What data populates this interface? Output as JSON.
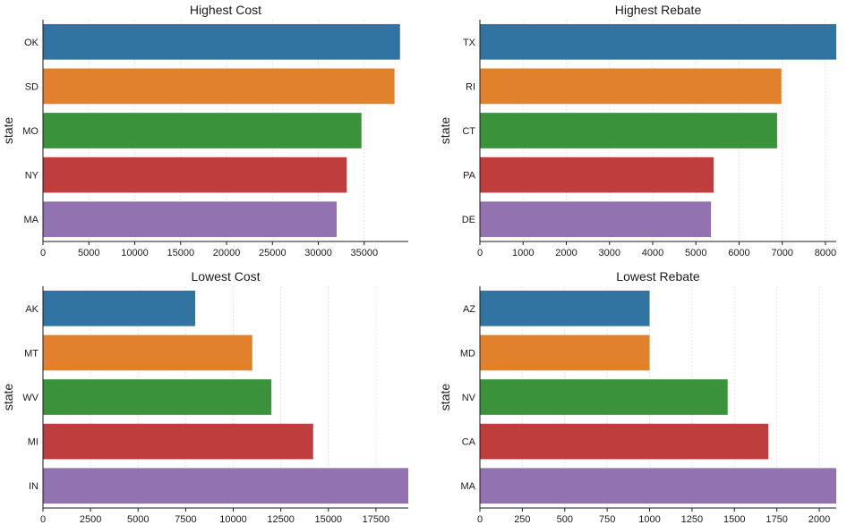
{
  "chart_data": [
    {
      "type": "bar",
      "orientation": "horizontal",
      "title": "Highest Cost",
      "ylabel": "state",
      "xlabel": "",
      "categories": [
        "OK",
        "SD",
        "MO",
        "NY",
        "MA"
      ],
      "values": [
        38900,
        38300,
        34700,
        33100,
        32000
      ],
      "xlim": [
        0,
        39800
      ],
      "xticks": [
        "0",
        "5000",
        "10000",
        "15000",
        "20000",
        "25000",
        "30000",
        "35000"
      ],
      "xtick_values": [
        0,
        5000,
        10000,
        15000,
        20000,
        25000,
        30000,
        35000
      ],
      "colors": [
        "#3274a1",
        "#e1812c",
        "#3a923a",
        "#c03d3e",
        "#9372b2"
      ],
      "grid": "vertical"
    },
    {
      "type": "bar",
      "orientation": "horizontal",
      "title": "Highest Rebate",
      "ylabel": "state",
      "xlabel": "",
      "categories": [
        "TX",
        "RI",
        "CT",
        "PA",
        "DE"
      ],
      "values": [
        8250,
        6980,
        6880,
        5410,
        5350
      ],
      "xlim": [
        0,
        8250
      ],
      "xticks": [
        "0",
        "1000",
        "2000",
        "3000",
        "4000",
        "5000",
        "6000",
        "7000",
        "8000"
      ],
      "xtick_values": [
        0,
        1000,
        2000,
        3000,
        4000,
        5000,
        6000,
        7000,
        8000
      ],
      "colors": [
        "#3274a1",
        "#e1812c",
        "#3a923a",
        "#c03d3e",
        "#9372b2"
      ],
      "grid": "vertical"
    },
    {
      "type": "bar",
      "orientation": "horizontal",
      "title": "Lowest Cost",
      "ylabel": "state",
      "xlabel": "",
      "categories": [
        "AK",
        "MT",
        "WV",
        "MI",
        "IN"
      ],
      "values": [
        8000,
        11000,
        12000,
        14200,
        19200
      ],
      "xlim": [
        0,
        19200
      ],
      "xticks": [
        "0",
        "2500",
        "5000",
        "7500",
        "10000",
        "12500",
        "15000",
        "17500"
      ],
      "xtick_values": [
        0,
        2500,
        5000,
        7500,
        10000,
        12500,
        15000,
        17500
      ],
      "colors": [
        "#3274a1",
        "#e1812c",
        "#3a923a",
        "#c03d3e",
        "#9372b2"
      ],
      "grid": "vertical"
    },
    {
      "type": "bar",
      "orientation": "horizontal",
      "title": "Lowest Rebate",
      "ylabel": "state",
      "xlabel": "",
      "categories": [
        "AZ",
        "MD",
        "NV",
        "CA",
        "MA"
      ],
      "values": [
        1000,
        1000,
        1460,
        1700,
        2100
      ],
      "xlim": [
        0,
        2100
      ],
      "xticks": [
        "0",
        "250",
        "500",
        "750",
        "1000",
        "1250",
        "1500",
        "1750",
        "2000"
      ],
      "xtick_values": [
        0,
        250,
        500,
        750,
        1000,
        1250,
        1500,
        1750,
        2000
      ],
      "colors": [
        "#3274a1",
        "#e1812c",
        "#3a923a",
        "#c03d3e",
        "#9372b2"
      ],
      "grid": "vertical"
    }
  ]
}
